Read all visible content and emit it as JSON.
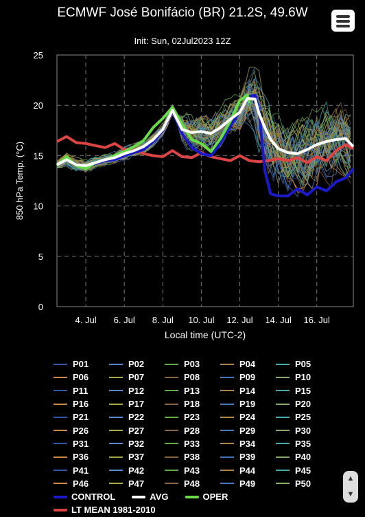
{
  "header": {
    "title": "ECMWF José Bonifácio (BR) 21.2S, 49.6W",
    "subtitle": "Init: Sun, 02Jul2023 12Z"
  },
  "menu": {
    "icon": "hamburger-menu-icon"
  },
  "chart_data": {
    "type": "line",
    "xlabel": "Local time (UTC-2)",
    "ylabel": "850 hPa Temp. (°C)",
    "ylim": [
      0,
      25
    ],
    "yticks": [
      0,
      5,
      10,
      15,
      20,
      25
    ],
    "xlim_days": [
      2.5,
      17.9
    ],
    "xticks": [
      "4. Jul",
      "6. Jul",
      "8. Jul",
      "10. Jul",
      "12. Jul",
      "14. Jul",
      "16. Jul"
    ],
    "grid": true,
    "series": [
      {
        "name": "CONTROL",
        "color": "#1a1acc",
        "points": [
          [
            2.5,
            14.0
          ],
          [
            3.0,
            14.8
          ],
          [
            3.5,
            14.0
          ],
          [
            4.0,
            13.8
          ],
          [
            4.5,
            14.2
          ],
          [
            5.0,
            14.5
          ],
          [
            5.5,
            14.6
          ],
          [
            6.0,
            15.0
          ],
          [
            6.5,
            15.3
          ],
          [
            7.0,
            15.6
          ],
          [
            7.5,
            16.4
          ],
          [
            8.0,
            17.5
          ],
          [
            8.5,
            19.4
          ],
          [
            9.0,
            17.2
          ],
          [
            9.5,
            15.8
          ],
          [
            10.0,
            15.2
          ],
          [
            10.5,
            15.0
          ],
          [
            11.0,
            16.2
          ],
          [
            11.5,
            17.9
          ],
          [
            12.0,
            19.4
          ],
          [
            12.5,
            20.9
          ],
          [
            12.8,
            21.0
          ],
          [
            13.0,
            19.5
          ],
          [
            13.3,
            13.5
          ],
          [
            13.6,
            11.2
          ],
          [
            14.0,
            11.0
          ],
          [
            14.5,
            11.0
          ],
          [
            15.0,
            11.7
          ],
          [
            15.5,
            11.1
          ],
          [
            16.0,
            11.9
          ],
          [
            16.5,
            11.5
          ],
          [
            17.0,
            12.4
          ],
          [
            17.5,
            12.8
          ],
          [
            17.9,
            13.7
          ]
        ]
      },
      {
        "name": "AVG",
        "color": "#ffffff",
        "points": [
          [
            2.5,
            14.1
          ],
          [
            3.0,
            14.6
          ],
          [
            3.5,
            14.1
          ],
          [
            4.0,
            14.0
          ],
          [
            4.5,
            14.3
          ],
          [
            5.0,
            14.6
          ],
          [
            5.5,
            14.8
          ],
          [
            6.0,
            15.2
          ],
          [
            6.5,
            15.5
          ],
          [
            7.0,
            15.9
          ],
          [
            7.5,
            16.6
          ],
          [
            8.0,
            17.6
          ],
          [
            8.5,
            19.5
          ],
          [
            9.0,
            17.6
          ],
          [
            9.5,
            17.3
          ],
          [
            10.0,
            17.4
          ],
          [
            10.5,
            17.2
          ],
          [
            11.0,
            17.8
          ],
          [
            11.5,
            18.6
          ],
          [
            12.0,
            19.3
          ],
          [
            12.4,
            20.7
          ],
          [
            12.8,
            20.6
          ],
          [
            13.0,
            19.2
          ],
          [
            13.3,
            17.8
          ],
          [
            13.6,
            16.6
          ],
          [
            14.0,
            15.7
          ],
          [
            14.5,
            15.3
          ],
          [
            15.0,
            15.2
          ],
          [
            15.5,
            15.6
          ],
          [
            16.0,
            16.1
          ],
          [
            16.5,
            16.4
          ],
          [
            17.0,
            16.6
          ],
          [
            17.5,
            16.7
          ],
          [
            17.9,
            15.9
          ]
        ]
      },
      {
        "name": "OPER",
        "color": "#66dd44",
        "points": [
          [
            2.5,
            14.0
          ],
          [
            3.0,
            14.9
          ],
          [
            3.5,
            14.0
          ],
          [
            4.0,
            13.7
          ],
          [
            4.5,
            14.3
          ],
          [
            5.0,
            14.6
          ],
          [
            5.5,
            15.0
          ],
          [
            6.0,
            15.4
          ],
          [
            6.5,
            15.9
          ],
          [
            7.0,
            16.5
          ],
          [
            7.5,
            17.8
          ],
          [
            8.0,
            18.7
          ],
          [
            8.5,
            19.8
          ],
          [
            9.0,
            18.1
          ],
          [
            9.5,
            16.6
          ],
          [
            10.0,
            16.2
          ],
          [
            10.5,
            15.4
          ],
          [
            11.0,
            16.7
          ],
          [
            11.5,
            18.4
          ],
          [
            12.0,
            20.5
          ],
          [
            12.4,
            21.0
          ],
          [
            12.5,
            20.2
          ]
        ]
      },
      {
        "name": "LT MEAN 1981-2010",
        "color": "#dd4444",
        "points": [
          [
            2.5,
            16.4
          ],
          [
            3.0,
            16.9
          ],
          [
            3.5,
            16.3
          ],
          [
            4.0,
            16.2
          ],
          [
            4.5,
            16.0
          ],
          [
            5.0,
            15.8
          ],
          [
            5.5,
            16.2
          ],
          [
            6.0,
            15.6
          ],
          [
            6.5,
            15.7
          ],
          [
            7.0,
            15.2
          ],
          [
            7.5,
            15.0
          ],
          [
            8.0,
            14.9
          ],
          [
            8.5,
            15.5
          ],
          [
            9.0,
            14.9
          ],
          [
            9.5,
            14.8
          ],
          [
            10.0,
            15.3
          ],
          [
            10.5,
            14.9
          ],
          [
            11.0,
            14.7
          ],
          [
            11.5,
            14.5
          ],
          [
            12.0,
            15.0
          ],
          [
            12.5,
            14.5
          ],
          [
            13.0,
            14.4
          ],
          [
            13.5,
            14.5
          ],
          [
            14.0,
            14.7
          ],
          [
            14.5,
            14.5
          ],
          [
            15.0,
            14.8
          ],
          [
            15.5,
            14.3
          ],
          [
            16.0,
            14.9
          ],
          [
            16.5,
            14.5
          ],
          [
            17.0,
            15.5
          ],
          [
            17.5,
            16.1
          ],
          [
            17.9,
            15.7
          ]
        ]
      }
    ]
  },
  "legend": {
    "members": [
      [
        "P01",
        "P02",
        "P03",
        "P04",
        "P05"
      ],
      [
        "P06",
        "P07",
        "P08",
        "P09",
        "P10"
      ],
      [
        "P11",
        "P12",
        "P13",
        "P14",
        "P15"
      ],
      [
        "P16",
        "P17",
        "P18",
        "P19",
        "P20"
      ],
      [
        "P21",
        "P22",
        "P23",
        "P24",
        "P25"
      ],
      [
        "P26",
        "P27",
        "P28",
        "P29",
        "P30"
      ],
      [
        "P31",
        "P32",
        "P33",
        "P34",
        "P35"
      ],
      [
        "P36",
        "P37",
        "P38",
        "P39",
        "P40"
      ],
      [
        "P41",
        "P42",
        "P43",
        "P44",
        "P45"
      ],
      [
        "P46",
        "P47",
        "P48",
        "P49",
        "P50"
      ]
    ],
    "member_colors": [
      "#3355aa",
      "#5588cc",
      "#66aa44",
      "#aa8844",
      "#44aaaa",
      "#cc8844",
      "#aaaa44",
      "#886644",
      "#4477bb",
      "#88aa66"
    ],
    "special": [
      {
        "label": "CONTROL",
        "color": "#1a1acc"
      },
      {
        "label": "AVG",
        "color": "#ffffff"
      },
      {
        "label": "OPER",
        "color": "#66dd44"
      }
    ],
    "lt_mean": {
      "label": "LT MEAN 1981-2010",
      "color": "#dd4444"
    }
  }
}
